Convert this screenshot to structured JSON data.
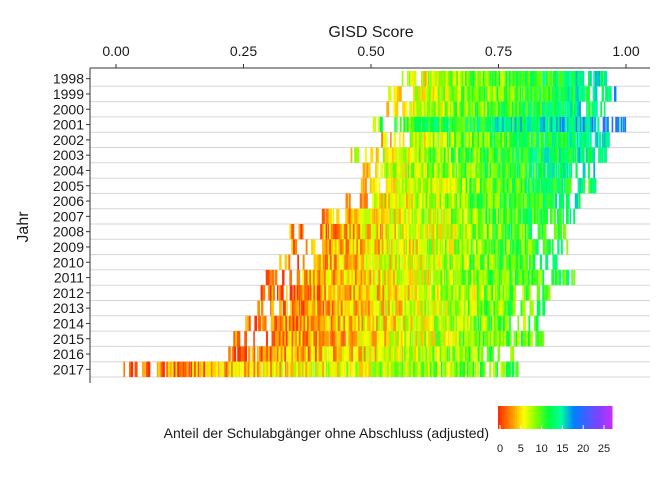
{
  "chart_data": {
    "type": "heatmap",
    "title": "",
    "xlabel": "GISD Score",
    "ylabel": "Jahr",
    "x_axis_position": "top",
    "xlim": [
      0,
      1
    ],
    "x_ticks": [
      0.0,
      0.25,
      0.5,
      0.75,
      1.0
    ],
    "x_tick_labels": [
      "0.00",
      "0.25",
      "0.50",
      "0.75",
      "1.00"
    ],
    "categories": [
      "1998",
      "1999",
      "2000",
      "2001",
      "2002",
      "2003",
      "2004",
      "2005",
      "2006",
      "2007",
      "2008",
      "2009",
      "2010",
      "2011",
      "2012",
      "2013",
      "2014",
      "2015",
      "2016",
      "2017"
    ],
    "grid": "horizontal",
    "rows": [
      {
        "year": "1998",
        "min": 0.55,
        "max": 0.96,
        "mean_color_value": 9
      },
      {
        "year": "1999",
        "min": 0.53,
        "max": 0.98,
        "mean_color_value": 9
      },
      {
        "year": "2000",
        "min": 0.53,
        "max": 0.96,
        "mean_color_value": 9
      },
      {
        "year": "2001",
        "min": 0.5,
        "max": 1.0,
        "mean_color_value": 12
      },
      {
        "year": "2002",
        "min": 0.52,
        "max": 0.97,
        "mean_color_value": 9
      },
      {
        "year": "2003",
        "min": 0.46,
        "max": 0.97,
        "mean_color_value": 9
      },
      {
        "year": "2004",
        "min": 0.48,
        "max": 0.95,
        "mean_color_value": 9
      },
      {
        "year": "2005",
        "min": 0.48,
        "max": 0.94,
        "mean_color_value": 8
      },
      {
        "year": "2006",
        "min": 0.45,
        "max": 0.91,
        "mean_color_value": 8
      },
      {
        "year": "2007",
        "min": 0.4,
        "max": 0.9,
        "mean_color_value": 7
      },
      {
        "year": "2008",
        "min": 0.34,
        "max": 0.88,
        "mean_color_value": 6
      },
      {
        "year": "2009",
        "min": 0.34,
        "max": 0.89,
        "mean_color_value": 6
      },
      {
        "year": "2010",
        "min": 0.32,
        "max": 0.87,
        "mean_color_value": 6
      },
      {
        "year": "2011",
        "min": 0.29,
        "max": 0.9,
        "mean_color_value": 6
      },
      {
        "year": "2012",
        "min": 0.28,
        "max": 0.85,
        "mean_color_value": 5
      },
      {
        "year": "2013",
        "min": 0.27,
        "max": 0.85,
        "mean_color_value": 5
      },
      {
        "year": "2014",
        "min": 0.25,
        "max": 0.83,
        "mean_color_value": 5
      },
      {
        "year": "2015",
        "min": 0.23,
        "max": 0.84,
        "mean_color_value": 5
      },
      {
        "year": "2016",
        "min": 0.22,
        "max": 0.78,
        "mean_color_value": 5
      },
      {
        "year": "2017",
        "min": 0.0,
        "max": 0.79,
        "mean_color_value": 5
      }
    ],
    "legend": {
      "title": "Anteil der Schulabgänger ohne Abschluss (adjusted)",
      "placement": "bottom",
      "range": [
        0,
        25
      ],
      "ticks": [
        0,
        5,
        10,
        15,
        20,
        25
      ],
      "tick_labels": [
        "0",
        "5",
        "10",
        "15",
        "20",
        "25"
      ],
      "colors": [
        "#ff3000",
        "#ff9000",
        "#ffff00",
        "#80ff00",
        "#00ff40",
        "#00ffa0",
        "#0080ff",
        "#4060ff",
        "#8040ff",
        "#c030ff"
      ]
    }
  }
}
